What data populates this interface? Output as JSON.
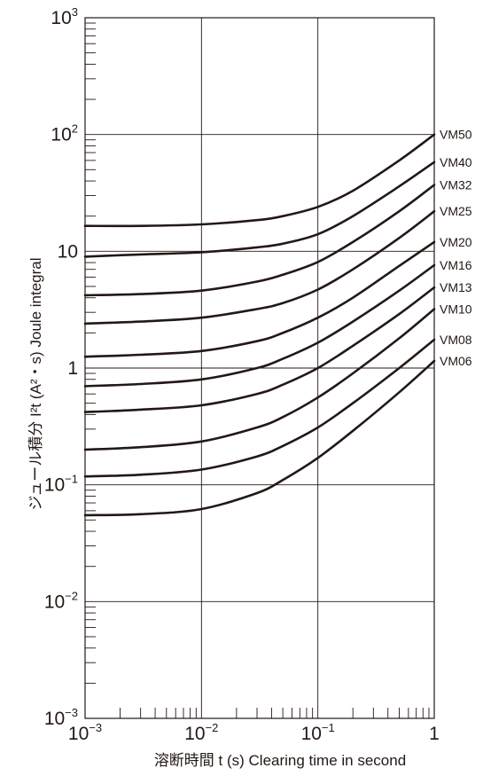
{
  "chart_data": {
    "type": "line",
    "xscale": "log",
    "yscale": "log",
    "xlim": [
      0.001,
      1
    ],
    "ylim": [
      0.001,
      1000
    ],
    "grid": true,
    "xlabel": "溶断時間 t (s)  Clearing time in second",
    "ylabel": "ジュール積分 I²t (A²・s)  Joule integral",
    "x_tick_labels": [
      {
        "base": "10",
        "exp": "−3",
        "value": 0.001
      },
      {
        "base": "10",
        "exp": "−2",
        "value": 0.01
      },
      {
        "base": "10",
        "exp": "−1",
        "value": 0.1
      },
      {
        "base": "1",
        "exp": "",
        "value": 1
      }
    ],
    "y_tick_labels": [
      {
        "base": "10",
        "exp": "3",
        "value": 1000
      },
      {
        "base": "10",
        "exp": "2",
        "value": 100
      },
      {
        "base": "10",
        "exp": "",
        "value": 10
      },
      {
        "base": "1",
        "exp": "",
        "value": 1
      },
      {
        "base": "10",
        "exp": "−1",
        "value": 0.1
      },
      {
        "base": "10",
        "exp": "−2",
        "value": 0.01
      },
      {
        "base": "10",
        "exp": "−3",
        "value": 0.001
      }
    ],
    "series": [
      {
        "name": "VM50",
        "x": [
          0.001,
          0.003,
          0.01,
          0.03,
          0.05,
          0.1,
          0.2,
          0.5,
          1
        ],
        "y": [
          16.5,
          16.5,
          17,
          18.5,
          20,
          24,
          33,
          60,
          100
        ]
      },
      {
        "name": "VM40",
        "x": [
          0.001,
          0.003,
          0.01,
          0.03,
          0.05,
          0.1,
          0.2,
          0.5,
          1
        ],
        "y": [
          9,
          9.4,
          9.8,
          10.8,
          11.6,
          14,
          20,
          36,
          58
        ]
      },
      {
        "name": "VM32",
        "x": [
          0.001,
          0.003,
          0.01,
          0.03,
          0.05,
          0.1,
          0.2,
          0.5,
          1
        ],
        "y": [
          4.2,
          4.3,
          4.6,
          5.5,
          6.3,
          8.1,
          12,
          22,
          37
        ]
      },
      {
        "name": "VM25",
        "x": [
          0.001,
          0.003,
          0.01,
          0.03,
          0.05,
          0.1,
          0.2,
          0.5,
          1
        ],
        "y": [
          2.4,
          2.5,
          2.7,
          3.2,
          3.6,
          4.7,
          7,
          13,
          22
        ]
      },
      {
        "name": "VM20",
        "x": [
          0.001,
          0.003,
          0.01,
          0.03,
          0.05,
          0.1,
          0.2,
          0.5,
          1
        ],
        "y": [
          1.25,
          1.3,
          1.4,
          1.7,
          2,
          2.7,
          4,
          7.5,
          12
        ]
      },
      {
        "name": "VM16",
        "x": [
          0.001,
          0.003,
          0.01,
          0.03,
          0.05,
          0.1,
          0.2,
          0.5,
          1
        ],
        "y": [
          0.7,
          0.73,
          0.8,
          1,
          1.2,
          1.65,
          2.5,
          4.6,
          7.6
        ]
      },
      {
        "name": "VM13",
        "x": [
          0.001,
          0.003,
          0.01,
          0.03,
          0.05,
          0.1,
          0.2,
          0.5,
          1
        ],
        "y": [
          0.42,
          0.44,
          0.48,
          0.6,
          0.72,
          1,
          1.55,
          2.9,
          4.9
        ]
      },
      {
        "name": "VM10",
        "x": [
          0.001,
          0.003,
          0.01,
          0.03,
          0.05,
          0.1,
          0.2,
          0.5,
          1
        ],
        "y": [
          0.2,
          0.21,
          0.235,
          0.31,
          0.38,
          0.56,
          0.9,
          1.8,
          3.2
        ]
      },
      {
        "name": "VM08",
        "x": [
          0.001,
          0.003,
          0.01,
          0.03,
          0.05,
          0.1,
          0.2,
          0.5,
          1
        ],
        "y": [
          0.118,
          0.122,
          0.135,
          0.175,
          0.215,
          0.31,
          0.5,
          1,
          1.75
        ]
      },
      {
        "name": "VM06",
        "x": [
          0.001,
          0.003,
          0.01,
          0.03,
          0.05,
          0.1,
          0.2,
          0.5,
          1
        ],
        "y": [
          0.055,
          0.056,
          0.062,
          0.085,
          0.11,
          0.17,
          0.29,
          0.62,
          1.15
        ]
      }
    ]
  }
}
